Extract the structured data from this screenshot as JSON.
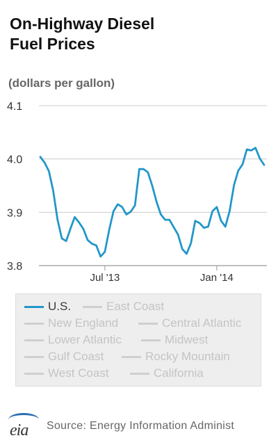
{
  "chart_data": {
    "type": "line",
    "title": "On-Highway Diesel Fuel Prices",
    "title_lines": [
      "On-Highway Diesel",
      "Fuel Prices"
    ],
    "ylabel": "(dollars per gallon)",
    "ylim": [
      3.8,
      4.1
    ],
    "yticks": [
      "4.1",
      "4.0",
      "3.9",
      "3.8"
    ],
    "ytick_values": [
      4.1,
      4.0,
      3.9,
      3.8
    ],
    "xticks": [
      {
        "label": "Jul '13",
        "index": 15
      },
      {
        "label": "Jan '14",
        "index": 41
      }
    ],
    "grid": true,
    "legend_position": "bottom",
    "series": [
      {
        "name": "U.S.",
        "color": "#2297c9",
        "values": [
          4.004,
          3.993,
          3.977,
          3.94,
          3.886,
          3.851,
          3.846,
          3.869,
          3.891,
          3.881,
          3.869,
          3.848,
          3.841,
          3.838,
          3.817,
          3.826,
          3.867,
          3.902,
          3.915,
          3.91,
          3.896,
          3.901,
          3.913,
          3.981,
          3.981,
          3.975,
          3.95,
          3.92,
          3.896,
          3.886,
          3.886,
          3.872,
          3.858,
          3.831,
          3.822,
          3.842,
          3.884,
          3.88,
          3.871,
          3.873,
          3.902,
          3.91,
          3.884,
          3.873,
          3.903,
          3.951,
          3.978,
          3.99,
          4.018,
          4.016,
          4.021,
          4.001,
          3.989
        ]
      }
    ]
  },
  "legend": {
    "items": [
      {
        "label": "U.S.",
        "active": true
      },
      {
        "label": "East Coast",
        "active": false
      },
      {
        "label": "New England",
        "active": false
      },
      {
        "label": "Central Atlantic",
        "active": false
      },
      {
        "label": "Lower Atlantic",
        "active": false
      },
      {
        "label": "Midwest",
        "active": false
      },
      {
        "label": "Gulf Coast",
        "active": false
      },
      {
        "label": "Rocky Mountain",
        "active": false
      },
      {
        "label": "West Coast",
        "active": false
      },
      {
        "label": "California",
        "active": false
      }
    ]
  },
  "footer": {
    "logo_text": "eia",
    "source": "Source: Energy Information Administ"
  },
  "colors": {
    "line": "#2297c9",
    "grid": "#cccccc",
    "legend_bg": "#eeeeee",
    "inactive": "#cfcfcf"
  }
}
